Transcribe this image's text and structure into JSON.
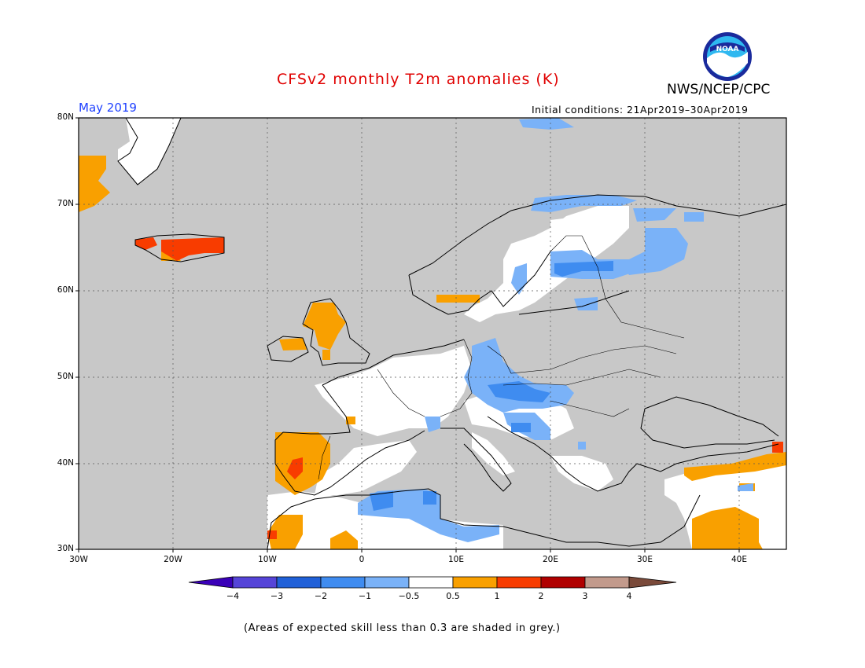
{
  "header": {
    "title": "CFSv2 monthly T2m anomalies (K)",
    "agency": "NWS/NCEP/CPC",
    "month": "May 2019",
    "initial_conditions": "Initial conditions: 21Apr2019–30Apr2019"
  },
  "logo": {
    "icon": "noaa-logo-icon",
    "text": "NOAA",
    "colors": {
      "outer": "#1a2a9c",
      "sky": "#2fb8f0",
      "bird": "#ffffff"
    }
  },
  "axes": {
    "lat_labels": [
      "80N",
      "70N",
      "60N",
      "50N",
      "40N",
      "30N"
    ],
    "lon_labels": [
      "30W",
      "20W",
      "10W",
      "0",
      "10E",
      "20E",
      "30E",
      "40E"
    ]
  },
  "legend": {
    "tick_labels": [
      "−4",
      "−3",
      "−2",
      "−1",
      "−0.5",
      "0.5",
      "1",
      "2",
      "3",
      "4"
    ],
    "colors": [
      "#3a00b8",
      "#5544d8",
      "#2060d8",
      "#3f8cf0",
      "#7ab2f8",
      "#ffffff",
      "#f9a000",
      "#f83c00",
      "#b00000",
      "#c29a8c",
      "#7a4a3a"
    ]
  },
  "colors": {
    "grey_skill": "#c8c8c8",
    "land_white": "#ffffff",
    "blue_light": "#7ab2f8",
    "blue": "#3f8cf0",
    "orange": "#f9a000",
    "red": "#f83c00",
    "coast": "#000000"
  },
  "footnote": "(Areas of expected skill less than 0.3 are shaded in grey.)"
}
